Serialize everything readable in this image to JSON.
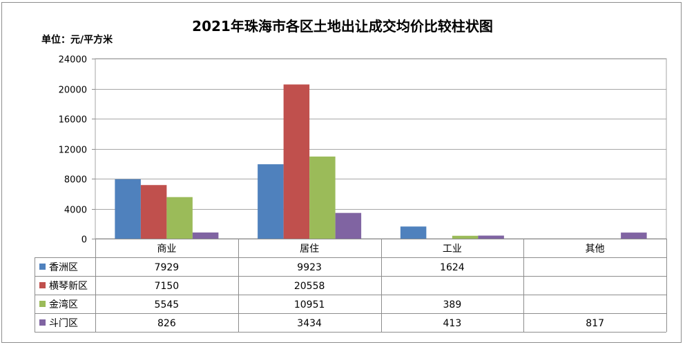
{
  "chart_data": {
    "type": "bar",
    "title": "2021年珠海市各区土地出让成交均价比较柱状图",
    "unit_label": "单位：元/平方米",
    "categories": [
      "商业",
      "居住",
      "工业",
      "其他"
    ],
    "ylim": [
      0,
      24000
    ],
    "yticks": [
      "0",
      "4000",
      "8000",
      "12000",
      "16000",
      "20000",
      "24000"
    ],
    "grid": true,
    "legend": "data-table",
    "series": [
      {
        "name": "香洲区",
        "color": "#4f81bd",
        "values": [
          7929,
          9923,
          1624,
          null
        ],
        "labels": [
          "7929",
          "9923",
          "1624",
          ""
        ]
      },
      {
        "name": "横琴新区",
        "color": "#c0504d",
        "values": [
          7150,
          20558,
          null,
          null
        ],
        "labels": [
          "7150",
          "20558",
          "",
          ""
        ]
      },
      {
        "name": "金湾区",
        "color": "#9bbb59",
        "values": [
          5545,
          10951,
          389,
          null
        ],
        "labels": [
          "5545",
          "10951",
          "389",
          ""
        ]
      },
      {
        "name": "斗门区",
        "color": "#8064a2",
        "values": [
          826,
          3434,
          413,
          817
        ],
        "labels": [
          "826",
          "3434",
          "413",
          "817"
        ]
      }
    ]
  }
}
